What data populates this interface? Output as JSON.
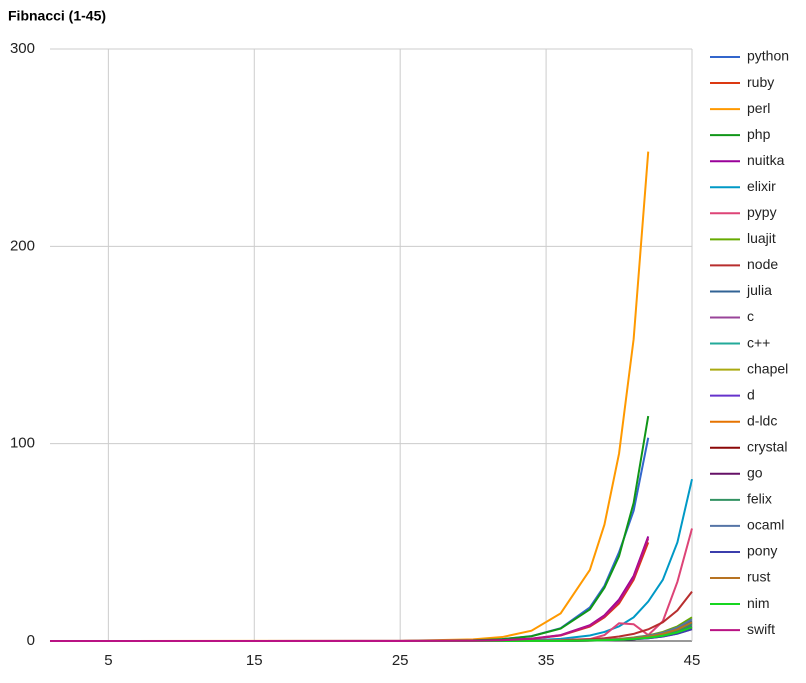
{
  "chart_data": {
    "type": "line",
    "title": "Fibnacci (1-45)",
    "x": [
      1,
      25,
      30,
      32,
      34,
      36,
      38,
      39,
      40,
      41,
      42,
      43,
      44,
      45
    ],
    "xlim": [
      1,
      45
    ],
    "xticks": [
      5,
      15,
      25,
      35,
      45
    ],
    "ylim": [
      0,
      300
    ],
    "yticks": [
      0,
      100,
      200,
      300
    ],
    "grid": true,
    "legend": "right",
    "series": [
      {
        "name": "python",
        "color": "#3366cc",
        "values": [
          0,
          0.04,
          0.4,
          1,
          2.5,
          6.5,
          17,
          28,
          45,
          66,
          103,
          null,
          null,
          null
        ]
      },
      {
        "name": "ruby",
        "color": "#dc3912",
        "values": [
          0,
          0.01,
          0.15,
          0.4,
          1.1,
          2.8,
          7.3,
          12,
          19,
          31,
          50,
          null,
          null,
          null
        ]
      },
      {
        "name": "perl",
        "color": "#ff9900",
        "values": [
          0,
          0.07,
          0.8,
          2,
          5.2,
          14,
          36,
          59,
          95,
          153,
          248,
          null,
          null,
          null
        ]
      },
      {
        "name": "php",
        "color": "#109618",
        "values": [
          0,
          0.03,
          0.35,
          0.9,
          2.4,
          6.3,
          16,
          27,
          43,
          70,
          114,
          null,
          null,
          null
        ]
      },
      {
        "name": "nuitka",
        "color": "#990099",
        "values": [
          0,
          0.02,
          0.17,
          0.45,
          1.2,
          3,
          8,
          13,
          21,
          33,
          53,
          null,
          null,
          null
        ]
      },
      {
        "name": "elixir",
        "color": "#0099c6",
        "values": [
          0,
          0,
          0.06,
          0.16,
          0.4,
          1.1,
          2.8,
          4.6,
          7.4,
          12,
          20,
          31,
          50,
          82
        ]
      },
      {
        "name": "pypy",
        "color": "#dd4477",
        "values": [
          0,
          0.05,
          0.1,
          0.2,
          0.3,
          0.5,
          1,
          3,
          9,
          8.5,
          3,
          10,
          30,
          57
        ]
      },
      {
        "name": "luajit",
        "color": "#66aa00",
        "values": [
          0,
          0,
          0.01,
          0.02,
          0.06,
          0.16,
          0.4,
          0.7,
          1.1,
          1.8,
          2.8,
          4.6,
          7.4,
          12
        ]
      },
      {
        "name": "node",
        "color": "#b82e2e",
        "values": [
          0,
          0,
          0.02,
          0.05,
          0.13,
          0.3,
          0.9,
          1.4,
          2.3,
          3.6,
          5.9,
          9.5,
          15.5,
          25
        ]
      },
      {
        "name": "julia",
        "color": "#316395",
        "values": [
          0,
          0,
          0.01,
          0.02,
          0.05,
          0.13,
          0.34,
          0.56,
          0.9,
          1.46,
          2.36,
          3.82,
          6.18,
          10
        ]
      },
      {
        "name": "c",
        "color": "#994499",
        "values": [
          0,
          0,
          0,
          0.01,
          0.03,
          0.08,
          0.2,
          0.34,
          0.54,
          0.88,
          1.42,
          2.29,
          3.71,
          6
        ]
      },
      {
        "name": "c++",
        "color": "#22aa99",
        "values": [
          0,
          0,
          0.01,
          0.01,
          0.04,
          0.09,
          0.24,
          0.39,
          0.63,
          1.02,
          1.65,
          2.67,
          4.33,
          7
        ]
      },
      {
        "name": "chapel",
        "color": "#aaaa11",
        "values": [
          0,
          0,
          0.01,
          0.02,
          0.04,
          0.1,
          0.27,
          0.45,
          0.72,
          1.17,
          1.89,
          3.06,
          4.94,
          8
        ]
      },
      {
        "name": "d",
        "color": "#6633cc",
        "values": [
          0,
          0,
          0.01,
          0.01,
          0.04,
          0.1,
          0.26,
          0.42,
          0.68,
          1.1,
          1.77,
          2.87,
          4.64,
          7.5
        ]
      },
      {
        "name": "d-ldc",
        "color": "#e67300",
        "values": [
          0,
          0,
          0,
          0.01,
          0.03,
          0.08,
          0.22,
          0.36,
          0.59,
          0.95,
          1.53,
          2.48,
          4.02,
          6.5
        ]
      },
      {
        "name": "crystal",
        "color": "#8b0707",
        "values": [
          0,
          0,
          0.01,
          0.01,
          0.04,
          0.09,
          0.24,
          0.39,
          0.63,
          1.02,
          1.65,
          2.67,
          4.33,
          7
        ]
      },
      {
        "name": "go",
        "color": "#651067",
        "values": [
          0,
          0,
          0.01,
          0.02,
          0.05,
          0.12,
          0.31,
          0.5,
          0.81,
          1.31,
          2.12,
          3.44,
          5.56,
          9
        ]
      },
      {
        "name": "felix",
        "color": "#329262",
        "values": [
          0,
          0,
          0.01,
          0.02,
          0.04,
          0.11,
          0.29,
          0.48,
          0.77,
          1.24,
          2.01,
          3.25,
          5.25,
          8.5
        ]
      },
      {
        "name": "ocaml",
        "color": "#5574a6",
        "values": [
          0,
          0,
          0.01,
          0.02,
          0.06,
          0.14,
          0.37,
          0.62,
          0.99,
          1.61,
          2.6,
          4.2,
          6.8,
          11
        ]
      },
      {
        "name": "pony",
        "color": "#3b3eac",
        "values": [
          0,
          0,
          0,
          0.01,
          0.03,
          0.08,
          0.2,
          0.34,
          0.54,
          0.88,
          1.42,
          2.29,
          3.71,
          6
        ]
      },
      {
        "name": "rust",
        "color": "#b77322",
        "values": [
          0,
          0,
          0.01,
          0.02,
          0.05,
          0.12,
          0.32,
          0.53,
          0.86,
          1.39,
          2.24,
          3.63,
          5.87,
          9.5
        ]
      },
      {
        "name": "nim",
        "color": "#16d620",
        "values": [
          0,
          0,
          0.01,
          0.01,
          0.04,
          0.09,
          0.24,
          0.39,
          0.63,
          1.02,
          1.65,
          2.67,
          4.33,
          7
        ]
      },
      {
        "name": "swift",
        "color": "#b91383",
        "values": [
          0,
          0.01,
          0.15,
          0.4,
          1.1,
          2.9,
          7.7,
          12.5,
          20,
          32,
          52,
          null,
          null,
          null
        ]
      }
    ]
  }
}
